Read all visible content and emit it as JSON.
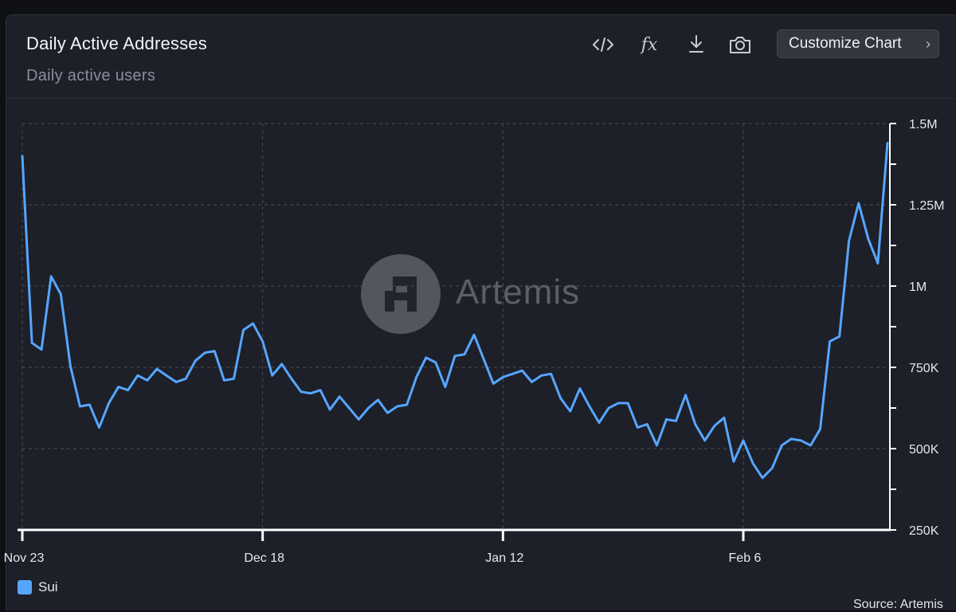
{
  "header": {
    "title": "Daily Active Addresses",
    "subtitle": "Daily active users",
    "customize_label": "Customize Chart"
  },
  "toolbar_icons": [
    "code-icon",
    "fx-icon",
    "download-icon",
    "camera-icon"
  ],
  "toolbar": {
    "fx_label": "fx"
  },
  "watermark": {
    "text": "Artemis"
  },
  "legend": {
    "label": "Sui",
    "color": "#56a6ff"
  },
  "source": "Source: Artemis",
  "colors": {
    "background": "#1d1f29",
    "line": "#56a6ff",
    "grid": "#4a4d58",
    "axis": "#ffffff",
    "tick_label": "#e6e8ec"
  },
  "chart_data": {
    "type": "line",
    "title": "Daily Active Addresses",
    "subtitle": "Daily active users",
    "x_tick_labels": [
      "Nov 23",
      "Dec 18",
      "Jan 12",
      "Feb 6"
    ],
    "x_tick_days": [
      0,
      25,
      50,
      75
    ],
    "y_tick_labels": [
      "1.5M",
      "1.25M",
      "1M",
      "750K",
      "500K",
      "250K"
    ],
    "y_tick_values": [
      1500000,
      1250000,
      1000000,
      750000,
      500000,
      250000
    ],
    "ylim": [
      250000,
      1500000
    ],
    "grid": true,
    "y_axis_position": "right",
    "legend_position": "bottom-left",
    "series": [
      {
        "name": "Sui",
        "color": "#56a6ff",
        "values": [
          1400000,
          825000,
          805000,
          1030000,
          975000,
          755000,
          630000,
          635000,
          565000,
          640000,
          690000,
          680000,
          725000,
          710000,
          745000,
          725000,
          705000,
          715000,
          770000,
          795000,
          800000,
          710000,
          715000,
          865000,
          885000,
          830000,
          725000,
          760000,
          715000,
          675000,
          670000,
          680000,
          620000,
          660000,
          625000,
          590000,
          625000,
          650000,
          610000,
          630000,
          635000,
          720000,
          780000,
          765000,
          690000,
          785000,
          790000,
          850000,
          775000,
          700000,
          720000,
          730000,
          740000,
          705000,
          725000,
          730000,
          655000,
          615000,
          685000,
          630000,
          580000,
          625000,
          640000,
          640000,
          565000,
          575000,
          510000,
          590000,
          585000,
          665000,
          575000,
          525000,
          570000,
          595000,
          460000,
          525000,
          455000,
          410000,
          440000,
          510000,
          530000,
          525000,
          510000,
          560000,
          830000,
          845000,
          1140000,
          1255000,
          1145000,
          1070000,
          1440000
        ]
      }
    ]
  }
}
